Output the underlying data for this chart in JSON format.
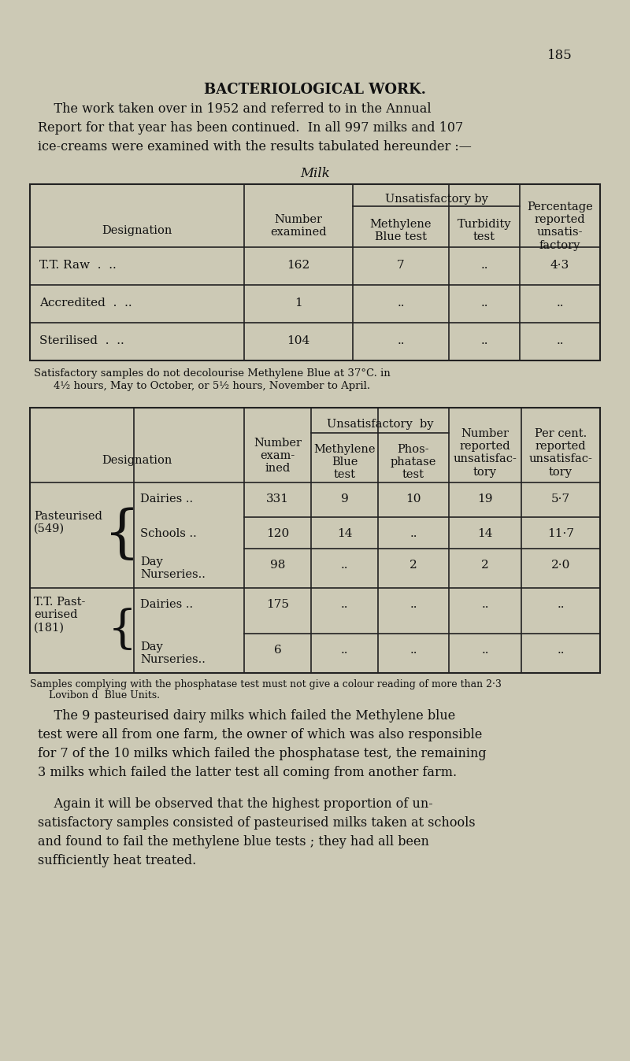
{
  "bg_color": "#ccc9b5",
  "page_number": "185",
  "title": "BACTERIOLOGICAL WORK.",
  "intro_lines": [
    "    The work taken over in 1952 and referred to in the Annual",
    "Report for that year has been continued.  In all 997 milks and 107",
    "ice-creams were examined with the results tabulated hereunder :—"
  ],
  "milk_title": "Milk",
  "t1_note_line1": "Satisfactory samples do not decolourise Methylene Blue at 37°C. in",
  "t1_note_line2": "4½ hours, May to October, or 5½ hours, November to April.",
  "t2_note_line1": "Samples complying with the phosphatase test must not give a colour reading of more than 2·3",
  "t2_note_line2": "  Lovibon d  Blue Units.",
  "para1_lines": [
    "    The 9 pasteurised dairy milks which failed the Methylene blue",
    "test were all from one farm, the owner of which was also responsible",
    "for 7 of the 10 milks which failed the phosphatase test, the remaining",
    "3 milks which failed the latter test all coming from another farm."
  ],
  "para2_lines": [
    "    Again it will be observed that the highest proportion of un-",
    "satisfactory samples consisted of pasteurised milks taken at schools",
    "and found to fail the methylene blue tests ; they had all been",
    "sufficiently heat treated."
  ]
}
